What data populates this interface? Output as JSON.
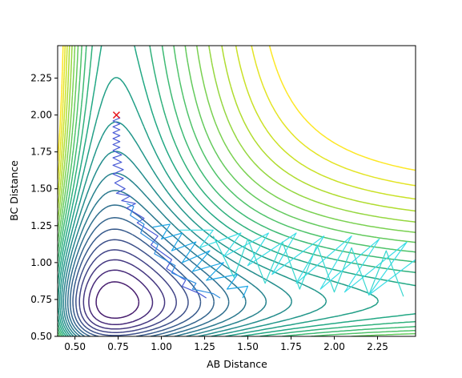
{
  "chart_data": {
    "type": "contour",
    "xlabel": "AB Distance",
    "ylabel": "BC Distance",
    "xlim": [
      0.4,
      2.47
    ],
    "ylim": [
      0.5,
      2.47
    ],
    "xticks": [
      0.5,
      0.75,
      1.0,
      1.25,
      1.5,
      1.75,
      2.0,
      2.25
    ],
    "yticks": [
      0.5,
      0.75,
      1.0,
      1.25,
      1.5,
      1.75,
      2.0,
      2.25
    ],
    "xtick_labels": [
      "0.50",
      "0.75",
      "1.00",
      "1.25",
      "1.50",
      "1.75",
      "2.00",
      "2.25"
    ],
    "ytick_labels": [
      "0.50",
      "0.75",
      "1.00",
      "1.25",
      "1.50",
      "1.75",
      "2.00",
      "2.25"
    ],
    "colormap": "viridis",
    "contour_levels": 26,
    "start_marker": {
      "symbol": "x",
      "x": 0.74,
      "y": 2.0,
      "color": "#e8141a"
    },
    "trajectories": [
      {
        "color": "#4a5bd6",
        "points": [
          [
            0.74,
            2.0
          ],
          [
            0.76,
            1.98
          ],
          [
            0.72,
            1.96
          ],
          [
            0.76,
            1.94
          ],
          [
            0.72,
            1.92
          ],
          [
            0.76,
            1.9
          ],
          [
            0.72,
            1.88
          ],
          [
            0.76,
            1.86
          ],
          [
            0.72,
            1.84
          ],
          [
            0.76,
            1.82
          ],
          [
            0.72,
            1.8
          ],
          [
            0.76,
            1.78
          ],
          [
            0.72,
            1.76
          ],
          [
            0.77,
            1.73
          ],
          [
            0.72,
            1.71
          ],
          [
            0.77,
            1.68
          ],
          [
            0.72,
            1.66
          ],
          [
            0.78,
            1.63
          ],
          [
            0.72,
            1.6
          ],
          [
            0.78,
            1.57
          ],
          [
            0.73,
            1.54
          ],
          [
            0.79,
            1.5
          ],
          [
            0.74,
            1.47
          ],
          [
            0.82,
            1.45
          ],
          [
            0.77,
            1.42
          ],
          [
            0.85,
            1.4
          ],
          [
            0.8,
            1.37
          ],
          [
            0.9,
            1.3
          ],
          [
            0.86,
            1.27
          ],
          [
            0.98,
            1.18
          ],
          [
            0.94,
            1.12
          ],
          [
            1.06,
            1.02
          ],
          [
            1.03,
            0.96
          ],
          [
            1.14,
            0.88
          ],
          [
            1.12,
            0.84
          ],
          [
            1.22,
            0.79
          ],
          [
            1.26,
            0.76
          ]
        ]
      },
      {
        "color": "#2f8ee0",
        "points": [
          [
            0.8,
            1.4
          ],
          [
            0.84,
            1.38
          ],
          [
            0.82,
            1.32
          ],
          [
            0.9,
            1.26
          ],
          [
            0.88,
            1.2
          ],
          [
            0.98,
            1.12
          ],
          [
            0.96,
            1.06
          ],
          [
            1.08,
            0.98
          ],
          [
            1.06,
            0.93
          ],
          [
            1.2,
            0.86
          ],
          [
            1.18,
            0.82
          ],
          [
            1.3,
            0.79
          ],
          [
            1.34,
            0.76
          ]
        ]
      },
      {
        "color": "#1ea6e6",
        "points": [
          [
            0.95,
            1.24
          ],
          [
            1.05,
            1.26
          ],
          [
            1.0,
            1.16
          ],
          [
            1.12,
            1.2
          ],
          [
            1.06,
            1.08
          ],
          [
            1.2,
            1.14
          ],
          [
            1.12,
            1.0
          ],
          [
            1.28,
            1.08
          ],
          [
            1.18,
            0.94
          ],
          [
            1.36,
            1.0
          ],
          [
            1.26,
            0.88
          ],
          [
            1.44,
            0.92
          ],
          [
            1.38,
            0.82
          ],
          [
            1.5,
            0.84
          ],
          [
            1.47,
            0.76
          ]
        ]
      },
      {
        "color": "#3cdde6",
        "points": [
          [
            1.1,
            1.22
          ],
          [
            1.3,
            1.22
          ],
          [
            1.22,
            1.1
          ],
          [
            1.46,
            1.2
          ],
          [
            1.36,
            1.04
          ],
          [
            1.62,
            1.2
          ],
          [
            1.5,
            0.98
          ],
          [
            1.78,
            1.2
          ],
          [
            1.64,
            0.92
          ],
          [
            1.94,
            1.18
          ],
          [
            1.78,
            0.86
          ],
          [
            2.1,
            1.18
          ],
          [
            1.92,
            0.82
          ],
          [
            2.26,
            1.16
          ],
          [
            2.06,
            0.8
          ],
          [
            2.42,
            1.14
          ],
          [
            2.2,
            0.78
          ],
          [
            2.47,
            1.02
          ]
        ]
      },
      {
        "color": "#38d7d0",
        "points": [
          [
            1.3,
            1.18
          ],
          [
            1.42,
            0.9
          ],
          [
            1.5,
            1.16
          ],
          [
            1.6,
            0.86
          ],
          [
            1.7,
            1.14
          ],
          [
            1.8,
            0.82
          ],
          [
            1.9,
            1.12
          ],
          [
            2.0,
            0.8
          ],
          [
            2.1,
            1.1
          ],
          [
            2.2,
            0.78
          ],
          [
            2.3,
            1.08
          ],
          [
            2.4,
            0.77
          ]
        ]
      }
    ]
  }
}
